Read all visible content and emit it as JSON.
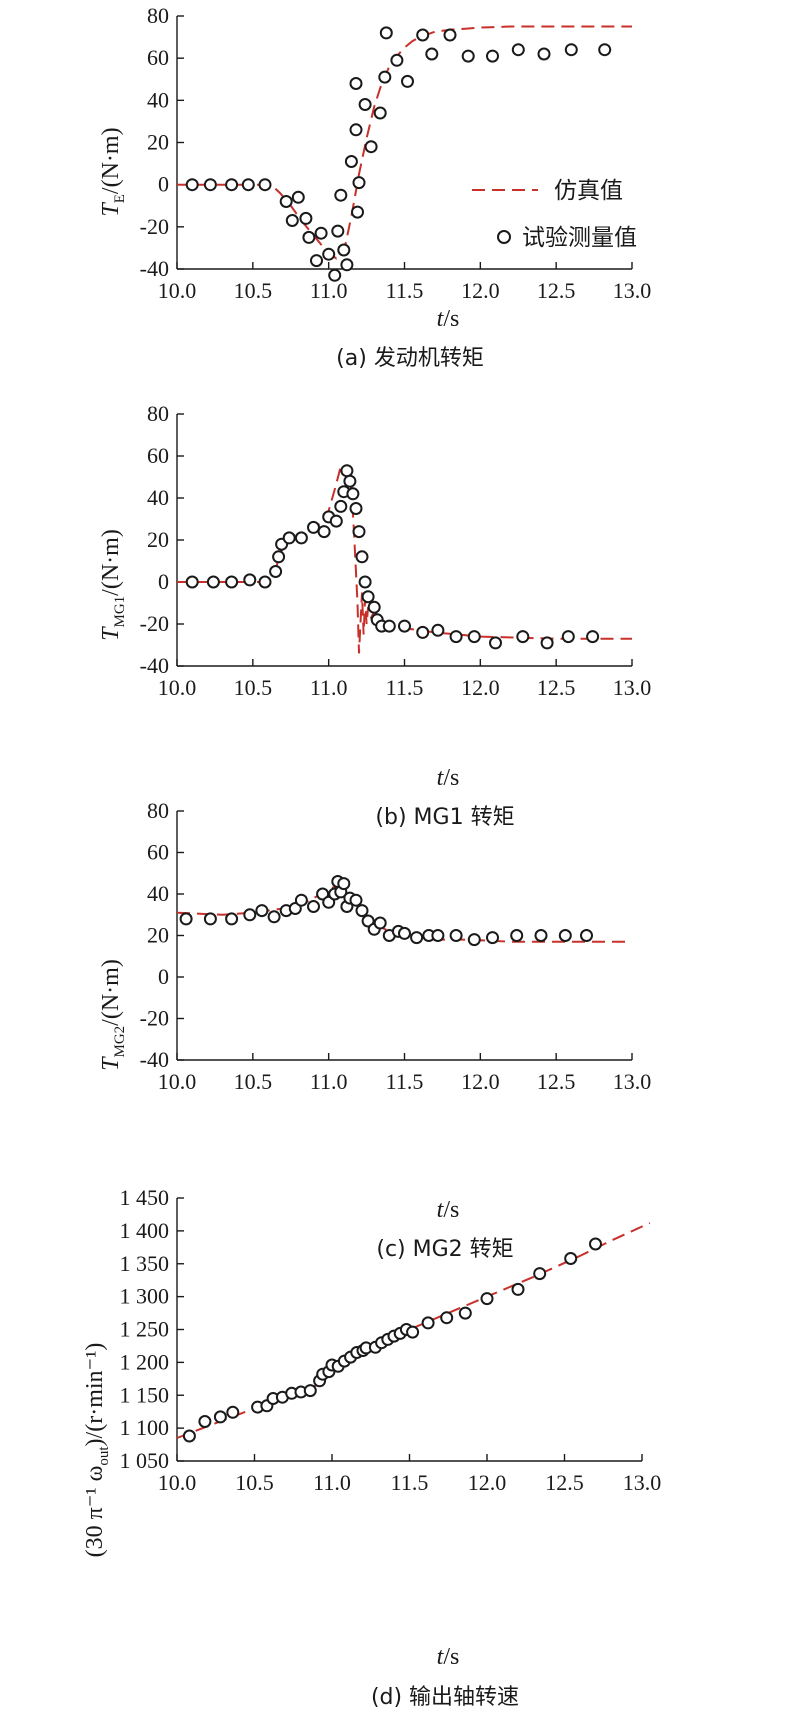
{
  "legend": {
    "sim": "仿真值",
    "test": "试验测量值"
  },
  "colors": {
    "sim": "#c8302a",
    "test": "#1a1a1a"
  },
  "chart_data": [
    {
      "type": "line",
      "caption": "(a) 发动机转矩",
      "ylabel_var": "T",
      "ylabel_sub": "E",
      "ylabel_unit": "/(N·m)",
      "xlabel_var": "t",
      "xlabel_unit": "/s",
      "xlim": [
        10.0,
        13.0
      ],
      "ylim": [
        -40,
        80
      ],
      "xticks": [
        10.0,
        10.5,
        11.0,
        11.5,
        12.0,
        12.5,
        13.0
      ],
      "yticks": [
        -40,
        -20,
        0,
        20,
        40,
        60,
        80
      ],
      "xtick_labels": [
        "10.0",
        "10.5",
        "11.0",
        "11.5",
        "12.0",
        "12.5",
        "13.0"
      ],
      "ytick_labels": [
        "-40",
        "-20",
        "0",
        "20",
        "40",
        "60",
        "80"
      ],
      "legend_position": "center-right",
      "series": [
        {
          "name": "仿真值",
          "kind": "line",
          "x": [
            10.0,
            10.62,
            10.68,
            10.75,
            10.82,
            10.9,
            10.98,
            11.05,
            11.1,
            11.15,
            11.2,
            11.25,
            11.3,
            11.35,
            11.4,
            11.45,
            11.5,
            11.55,
            11.6,
            11.7,
            11.8,
            11.9,
            12.0,
            12.2,
            12.5,
            12.8,
            13.0
          ],
          "y": [
            0,
            0,
            -4,
            -10,
            -17,
            -24,
            -31,
            -35,
            -32,
            -15,
            5,
            22,
            37,
            48,
            56,
            61,
            65,
            68,
            70,
            72.5,
            73.5,
            74,
            74.5,
            75,
            75,
            75,
            75
          ]
        },
        {
          "name": "试验测量值",
          "kind": "scatter",
          "x": [
            10.1,
            10.22,
            10.36,
            10.47,
            10.58,
            10.72,
            10.76,
            10.8,
            10.85,
            10.87,
            10.92,
            10.95,
            11.0,
            11.04,
            11.06,
            11.08,
            11.1,
            11.12,
            11.15,
            11.18,
            11.18,
            11.19,
            11.2,
            11.24,
            11.28,
            11.34,
            11.37,
            11.38,
            11.45,
            11.52,
            11.62,
            11.68,
            11.8,
            11.92,
            12.08,
            12.25,
            12.42,
            12.6,
            12.82
          ],
          "y": [
            0,
            0,
            0,
            0,
            0,
            -8,
            -17,
            -6,
            -16,
            -25,
            -36,
            -23,
            -33,
            -43,
            -22,
            -5,
            -31,
            -38,
            11,
            26,
            48,
            -13,
            1,
            38,
            18,
            34,
            51,
            72,
            59,
            49,
            71,
            62,
            71,
            61,
            61,
            64,
            62,
            64,
            64
          ]
        }
      ]
    },
    {
      "type": "line",
      "caption": "(b) MG1 转矩",
      "ylabel_var": "T",
      "ylabel_sub": "MG1",
      "ylabel_unit": "/(N·m)",
      "xlabel_var": "t",
      "xlabel_unit": "/s",
      "xlim": [
        10.0,
        13.0
      ],
      "ylim": [
        -40,
        80
      ],
      "xticks": [
        10.0,
        10.5,
        11.0,
        11.5,
        12.0,
        12.5,
        13.0
      ],
      "yticks": [
        -40,
        -20,
        0,
        20,
        40,
        60,
        80
      ],
      "xtick_labels": [
        "10.0",
        "10.5",
        "11.0",
        "11.5",
        "12.0",
        "12.5",
        "13.0"
      ],
      "ytick_labels": [
        "-40",
        "-20",
        "0",
        "20",
        "40",
        "60",
        "80"
      ],
      "series": [
        {
          "name": "仿真值",
          "kind": "line",
          "x": [
            10.0,
            10.6,
            10.64,
            10.68,
            10.75,
            10.85,
            10.95,
            11.0,
            11.04,
            11.08,
            11.12,
            11.15,
            11.17,
            11.19,
            11.2,
            11.22,
            11.23,
            11.24,
            11.25,
            11.26,
            11.28,
            11.3,
            11.35,
            11.4,
            11.5,
            11.7,
            12.0,
            12.5,
            13.0
          ],
          "y": [
            0,
            0,
            3,
            14,
            20,
            24,
            28,
            34,
            44,
            55,
            55,
            46,
            20,
            -10,
            -34,
            -5,
            -25,
            -8,
            -20,
            -12,
            -17,
            -14,
            -18,
            -20,
            -22,
            -24,
            -26,
            -27,
            -27
          ]
        },
        {
          "name": "试验测量值",
          "kind": "scatter",
          "x": [
            10.1,
            10.24,
            10.36,
            10.48,
            10.58,
            10.65,
            10.67,
            10.69,
            10.74,
            10.82,
            10.9,
            10.97,
            11.0,
            11.05,
            11.08,
            11.1,
            11.12,
            11.14,
            11.16,
            11.18,
            11.2,
            11.22,
            11.24,
            11.26,
            11.3,
            11.32,
            11.35,
            11.4,
            11.5,
            11.62,
            11.72,
            11.84,
            11.96,
            12.1,
            12.28,
            12.44,
            12.58,
            12.74
          ],
          "y": [
            0,
            0,
            0,
            1,
            0,
            5,
            12,
            18,
            21,
            21,
            26,
            24,
            31,
            29,
            36,
            43,
            53,
            48,
            42,
            35,
            24,
            12,
            0,
            -7,
            -12,
            -18,
            -21,
            -21,
            -21,
            -24,
            -23,
            -26,
            -26,
            -29,
            -26,
            -29,
            -26,
            -26
          ]
        }
      ]
    },
    {
      "type": "line",
      "caption": "(c) MG2 转矩",
      "ylabel_var": "T",
      "ylabel_sub": "MG2",
      "ylabel_unit": "/(N·m)",
      "xlabel_var": "t",
      "xlabel_unit": "/s",
      "xlim": [
        10.0,
        13.0
      ],
      "ylim": [
        -40,
        80
      ],
      "xticks": [
        10.0,
        10.5,
        11.0,
        11.5,
        12.0,
        12.5,
        13.0
      ],
      "yticks": [
        -40,
        -20,
        0,
        20,
        40,
        60,
        80
      ],
      "xtick_labels": [
        "10.0",
        "10.5",
        "11.0",
        "11.5",
        "12.0",
        "12.5",
        "13.0"
      ],
      "ytick_labels": [
        "-40",
        "-20",
        "0",
        "20",
        "40",
        "60",
        "80"
      ],
      "series": [
        {
          "name": "仿真值",
          "kind": "line",
          "x": [
            10.0,
            10.3,
            10.5,
            10.7,
            10.85,
            10.95,
            11.02,
            11.08,
            11.12,
            11.18,
            11.25,
            11.32,
            11.4,
            11.5,
            11.6,
            11.7,
            11.9,
            12.2,
            12.6,
            13.0
          ],
          "y": [
            31,
            30,
            31,
            33,
            36,
            40,
            43,
            44,
            41,
            36,
            30,
            25,
            22,
            20,
            19,
            18,
            18,
            17,
            17,
            17
          ]
        },
        {
          "name": "试验测量值",
          "kind": "scatter",
          "x": [
            10.06,
            10.22,
            10.36,
            10.48,
            10.56,
            10.64,
            10.72,
            10.78,
            10.82,
            10.9,
            10.96,
            11.0,
            11.04,
            11.06,
            11.08,
            11.1,
            11.12,
            11.14,
            11.18,
            11.22,
            11.26,
            11.3,
            11.34,
            11.4,
            11.46,
            11.5,
            11.58,
            11.66,
            11.72,
            11.84,
            11.96,
            12.08,
            12.24,
            12.4,
            12.56,
            12.7
          ],
          "y": [
            28,
            28,
            28,
            30,
            32,
            29,
            32,
            33,
            37,
            34,
            40,
            36,
            40,
            46,
            41,
            45,
            34,
            38,
            37,
            32,
            27,
            23,
            26,
            20,
            22,
            21,
            19,
            20,
            20,
            20,
            18,
            19,
            20,
            20,
            20,
            20
          ]
        }
      ]
    },
    {
      "type": "line",
      "caption": "(d) 输出轴转速",
      "ylabel_text": "(30 π⁻¹ ω",
      "ylabel_sub": "out",
      "ylabel_unit": ")/(r·min⁻¹)",
      "xlabel_var": "t",
      "xlabel_unit": "/s",
      "xlim": [
        10.0,
        13.0
      ],
      "ylim": [
        1050,
        1450
      ],
      "xticks": [
        10.0,
        10.5,
        11.0,
        11.5,
        12.0,
        12.5,
        13.0
      ],
      "yticks": [
        1050,
        1100,
        1150,
        1200,
        1250,
        1300,
        1350,
        1400,
        1450
      ],
      "xtick_labels": [
        "10.0",
        "10.5",
        "11.0",
        "11.5",
        "12.0",
        "12.5",
        "13.0"
      ],
      "ytick_labels": [
        "1 050",
        "1 100",
        "1 150",
        "1 200",
        "1 250",
        "1 300",
        "1 350",
        "1 400",
        "1 450"
      ],
      "series": [
        {
          "name": "仿真值",
          "kind": "line",
          "x": [
            10.0,
            10.5,
            10.9,
            11.0,
            11.1,
            11.3,
            11.5,
            11.7,
            12.0,
            12.3,
            12.6,
            12.8,
            13.05
          ],
          "y": [
            1085,
            1130,
            1165,
            1185,
            1200,
            1225,
            1250,
            1270,
            1300,
            1330,
            1362,
            1385,
            1412
          ]
        },
        {
          "name": "试验测量值",
          "kind": "scatter",
          "x": [
            10.08,
            10.18,
            10.28,
            10.36,
            10.52,
            10.58,
            10.62,
            10.68,
            10.74,
            10.8,
            10.86,
            10.92,
            10.94,
            10.98,
            11.0,
            11.04,
            11.08,
            11.12,
            11.16,
            11.2,
            11.22,
            11.28,
            11.32,
            11.36,
            11.4,
            11.44,
            11.48,
            11.52,
            11.62,
            11.74,
            11.86,
            12.0,
            12.2,
            12.34,
            12.54,
            12.7
          ],
          "y": [
            1088,
            1110,
            1117,
            1124,
            1132,
            1134,
            1145,
            1147,
            1153,
            1155,
            1157,
            1172,
            1182,
            1186,
            1196,
            1194,
            1202,
            1208,
            1215,
            1218,
            1222,
            1223,
            1230,
            1235,
            1240,
            1244,
            1250,
            1246,
            1260,
            1268,
            1275,
            1297,
            1311,
            1335,
            1358,
            1380
          ]
        }
      ]
    }
  ]
}
